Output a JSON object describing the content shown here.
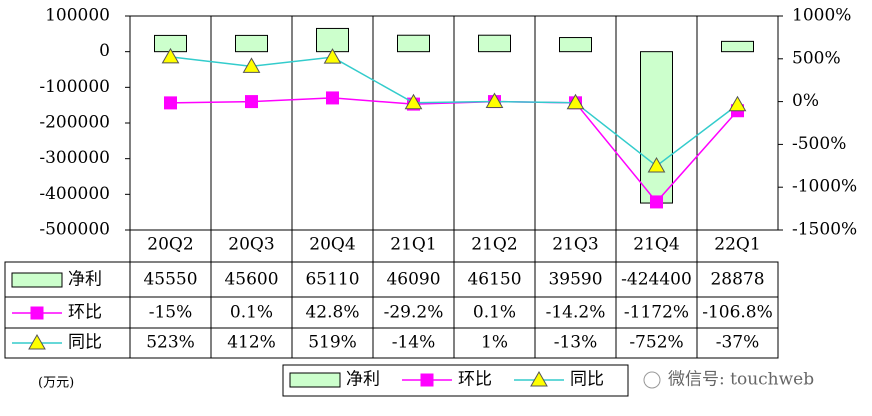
{
  "chart_data": {
    "type": "bar-line-table",
    "categories": [
      "20Q2",
      "20Q3",
      "20Q4",
      "21Q1",
      "21Q2",
      "21Q3",
      "21Q4",
      "22Q1"
    ],
    "series": [
      {
        "name": "净利",
        "type": "bar",
        "color": "#ccffcc",
        "values": [
          45550,
          45600,
          65110,
          46090,
          46150,
          39590,
          -424400,
          28878
        ]
      },
      {
        "name": "环比",
        "type": "line",
        "axis": "y2",
        "color": "#ff00ff",
        "marker": "square",
        "marker_color": "#ff00ff",
        "values": [
          -15,
          0.1,
          42.8,
          -29.2,
          0.1,
          -14.2,
          -1172,
          -106.8
        ],
        "value_labels": [
          "-15%",
          "0.1%",
          "42.8%",
          "-29.2%",
          "0.1%",
          "-14.2%",
          "-1172%",
          "-106.8%"
        ]
      },
      {
        "name": "同比",
        "type": "line",
        "axis": "y2",
        "color": "#33cccc",
        "marker": "triangle",
        "marker_color": "#ffff00",
        "values": [
          523,
          412,
          519,
          -14,
          1,
          -13,
          -752,
          -37
        ],
        "value_labels": [
          "523%",
          "412%",
          "519%",
          "-14%",
          "1%",
          "-13%",
          "-752%",
          "-37%"
        ]
      }
    ],
    "ylim": [
      -500000,
      100000
    ],
    "yticks": [
      -500000,
      -400000,
      -300000,
      -200000,
      -100000,
      0,
      100000
    ],
    "y2lim": [
      -1500,
      1000
    ],
    "y2ticks": [
      {
        "value": -1500,
        "label": "-1500%"
      },
      {
        "value": -1000,
        "label": "-1000%"
      },
      {
        "value": -500,
        "label": "-500%"
      },
      {
        "value": 0,
        "label": "0%"
      },
      {
        "value": 500,
        "label": "500%"
      },
      {
        "value": 1000,
        "label": "1000%"
      }
    ],
    "unit_note": "(万元)",
    "watermark": "微信号: touchweb"
  }
}
